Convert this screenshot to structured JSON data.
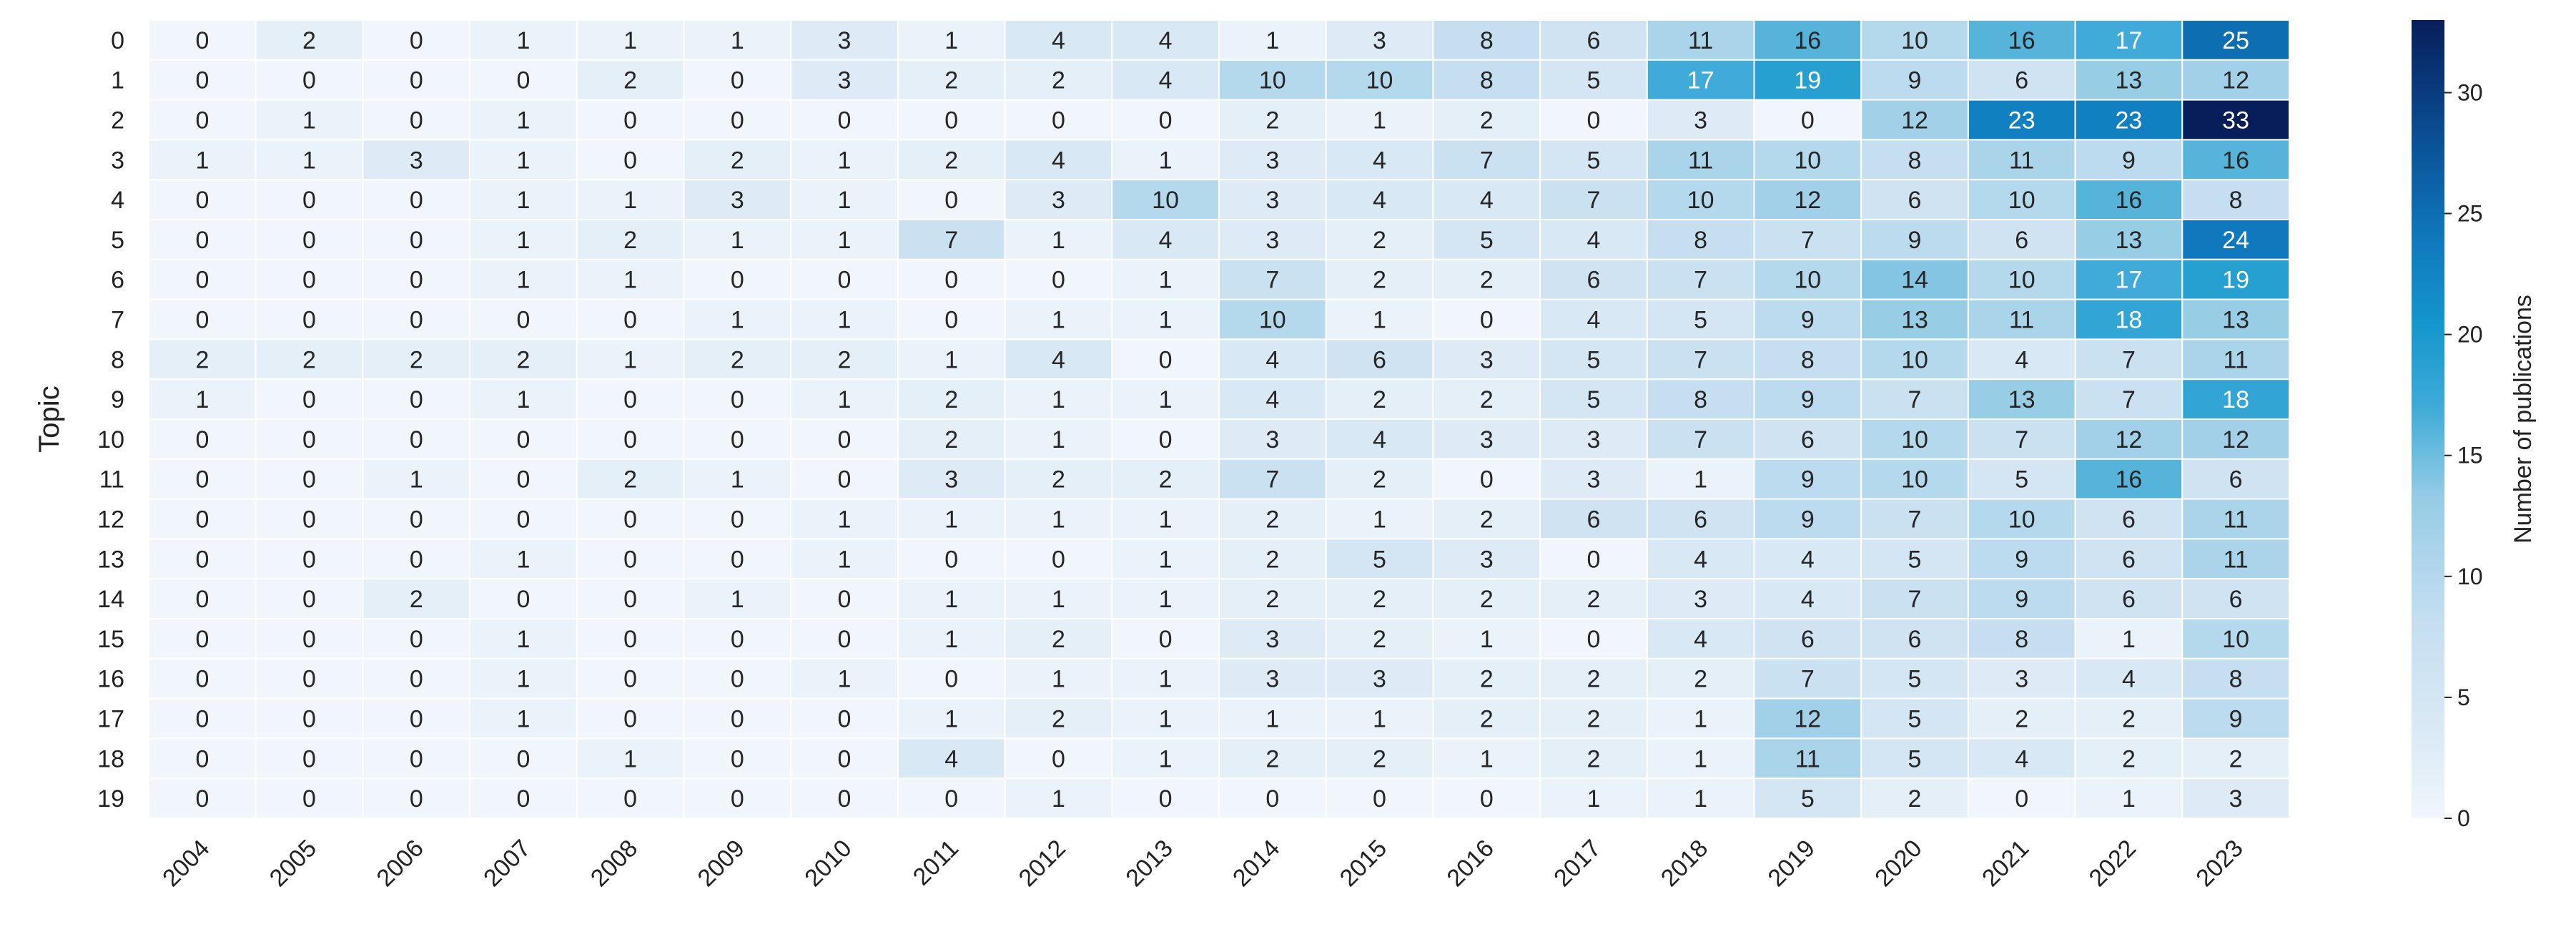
{
  "chart_data": {
    "type": "heatmap",
    "title": "",
    "xlabel": "",
    "ylabel": "Topic",
    "colorbar_label": "Number of publications",
    "colormap": "Blues",
    "colorbar_range": [
      0,
      33
    ],
    "colorbar_ticks": [
      0,
      5,
      10,
      15,
      20,
      25,
      30
    ],
    "x_categories": [
      "2004",
      "2005",
      "2006",
      "2007",
      "2008",
      "2009",
      "2010",
      "2011",
      "2012",
      "2013",
      "2014",
      "2015",
      "2016",
      "2017",
      "2018",
      "2019",
      "2020",
      "2021",
      "2022",
      "2023"
    ],
    "y_categories": [
      "0",
      "1",
      "2",
      "3",
      "4",
      "5",
      "6",
      "7",
      "8",
      "9",
      "10",
      "11",
      "12",
      "13",
      "14",
      "15",
      "16",
      "17",
      "18",
      "19"
    ],
    "values": [
      [
        0,
        2,
        0,
        1,
        1,
        1,
        3,
        1,
        4,
        4,
        1,
        3,
        8,
        6,
        11,
        16,
        10,
        16,
        17,
        25
      ],
      [
        0,
        0,
        0,
        0,
        2,
        0,
        3,
        2,
        2,
        4,
        10,
        10,
        8,
        5,
        17,
        19,
        9,
        6,
        13,
        12
      ],
      [
        0,
        1,
        0,
        1,
        0,
        0,
        0,
        0,
        0,
        0,
        2,
        1,
        2,
        0,
        3,
        0,
        12,
        23,
        23,
        33
      ],
      [
        1,
        1,
        3,
        1,
        0,
        2,
        1,
        2,
        4,
        1,
        3,
        4,
        7,
        5,
        11,
        10,
        8,
        11,
        9,
        16
      ],
      [
        0,
        0,
        0,
        1,
        1,
        3,
        1,
        0,
        3,
        10,
        3,
        4,
        4,
        7,
        10,
        12,
        6,
        10,
        16,
        8
      ],
      [
        0,
        0,
        0,
        1,
        2,
        1,
        1,
        7,
        1,
        4,
        3,
        2,
        5,
        4,
        8,
        7,
        9,
        6,
        13,
        24
      ],
      [
        0,
        0,
        0,
        1,
        1,
        0,
        0,
        0,
        0,
        1,
        7,
        2,
        2,
        6,
        7,
        10,
        14,
        10,
        17,
        19
      ],
      [
        0,
        0,
        0,
        0,
        0,
        1,
        1,
        0,
        1,
        1,
        10,
        1,
        0,
        4,
        5,
        9,
        13,
        11,
        18,
        13
      ],
      [
        2,
        2,
        2,
        2,
        1,
        2,
        2,
        1,
        4,
        0,
        4,
        6,
        3,
        5,
        7,
        8,
        10,
        4,
        7,
        11
      ],
      [
        1,
        0,
        0,
        1,
        0,
        0,
        1,
        2,
        1,
        1,
        4,
        2,
        2,
        5,
        8,
        9,
        7,
        13,
        7,
        18
      ],
      [
        0,
        0,
        0,
        0,
        0,
        0,
        0,
        2,
        1,
        0,
        3,
        4,
        3,
        3,
        7,
        6,
        10,
        7,
        12,
        12
      ],
      [
        0,
        0,
        1,
        0,
        2,
        1,
        0,
        3,
        2,
        2,
        7,
        2,
        0,
        3,
        1,
        9,
        10,
        5,
        16,
        6
      ],
      [
        0,
        0,
        0,
        0,
        0,
        0,
        1,
        1,
        1,
        1,
        2,
        1,
        2,
        6,
        6,
        9,
        7,
        10,
        6,
        11
      ],
      [
        0,
        0,
        0,
        1,
        0,
        0,
        1,
        0,
        0,
        1,
        2,
        5,
        3,
        0,
        4,
        4,
        5,
        9,
        6,
        11
      ],
      [
        0,
        0,
        2,
        0,
        0,
        1,
        0,
        1,
        1,
        1,
        2,
        2,
        2,
        2,
        3,
        4,
        7,
        9,
        6,
        6
      ],
      [
        0,
        0,
        0,
        1,
        0,
        0,
        0,
        1,
        2,
        0,
        3,
        2,
        1,
        0,
        4,
        6,
        6,
        8,
        1,
        10
      ],
      [
        0,
        0,
        0,
        1,
        0,
        0,
        1,
        0,
        1,
        1,
        3,
        3,
        2,
        2,
        2,
        7,
        5,
        3,
        4,
        8
      ],
      [
        0,
        0,
        0,
        1,
        0,
        0,
        0,
        1,
        2,
        1,
        1,
        1,
        2,
        2,
        1,
        12,
        5,
        2,
        2,
        9
      ],
      [
        0,
        0,
        0,
        0,
        1,
        0,
        0,
        4,
        0,
        1,
        2,
        2,
        1,
        2,
        1,
        11,
        5,
        4,
        2,
        2
      ],
      [
        0,
        0,
        0,
        0,
        0,
        0,
        0,
        0,
        1,
        0,
        0,
        0,
        0,
        1,
        1,
        5,
        2,
        0,
        1,
        3
      ]
    ],
    "grid": false,
    "annotations": true
  }
}
